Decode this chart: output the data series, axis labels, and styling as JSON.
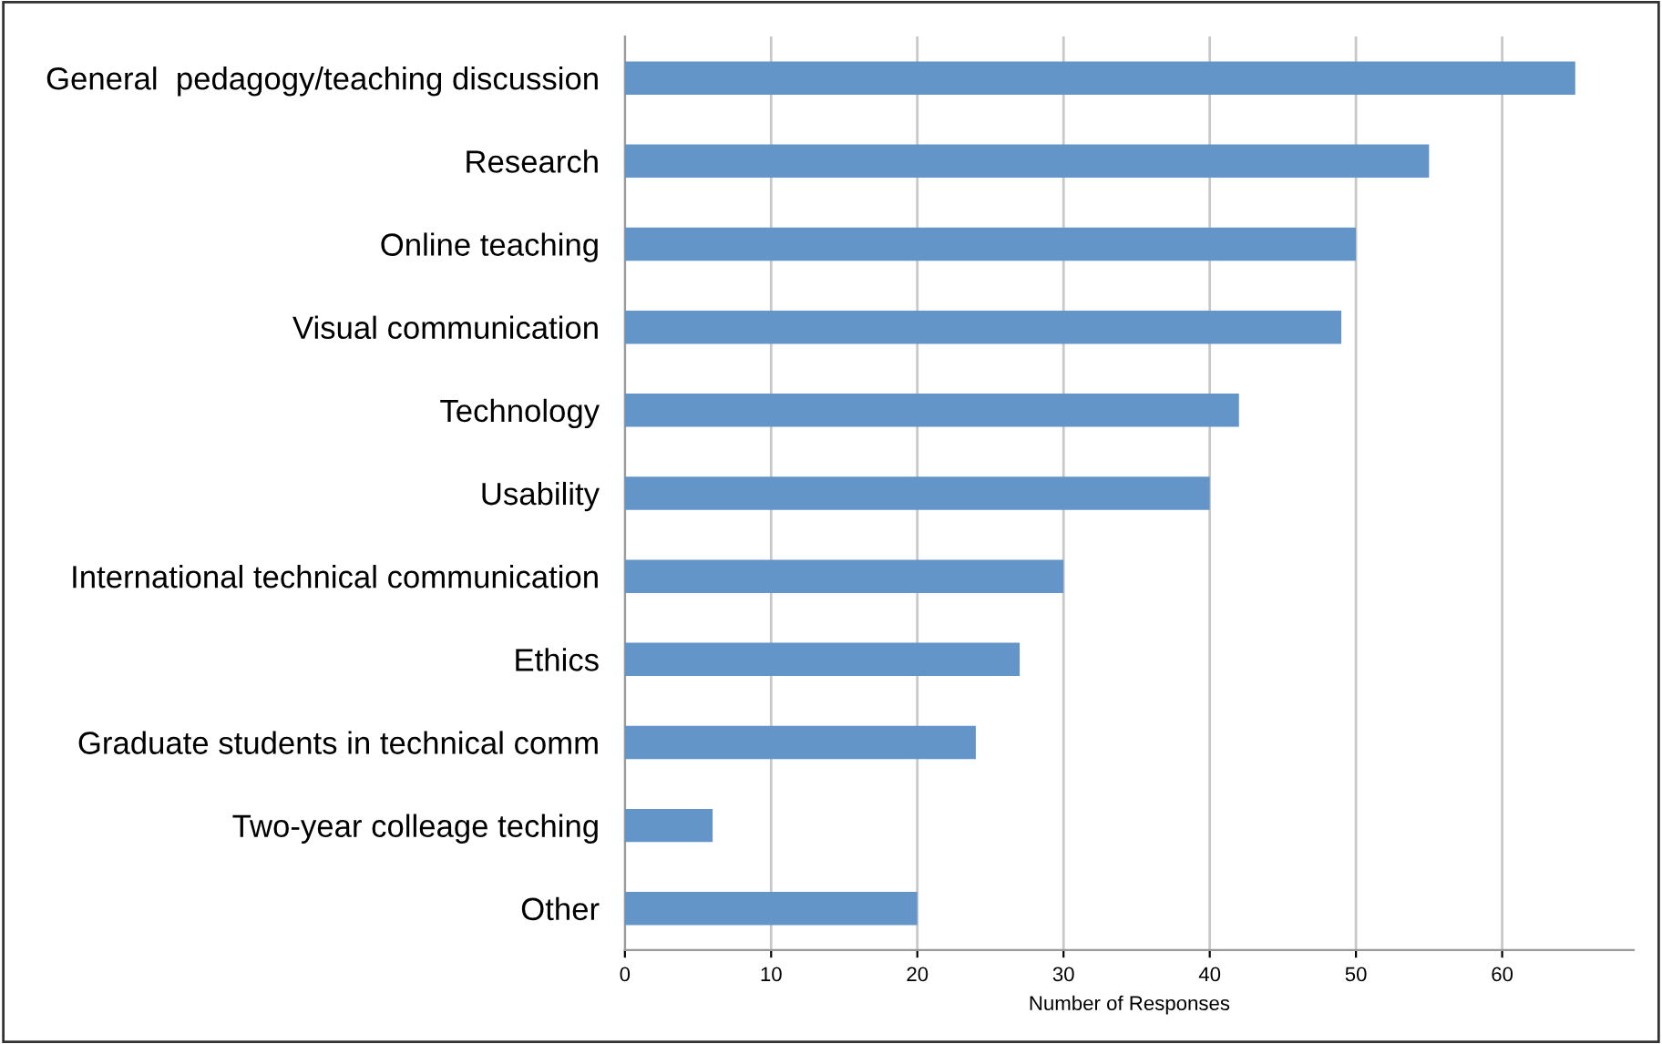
{
  "chart_data": {
    "type": "bar",
    "orientation": "horizontal",
    "xlabel": "Number of Responses",
    "categories": [
      "General  pedagogy/teaching discussion",
      "Research",
      "Online teaching",
      "Visual communication",
      "Technology",
      "Usability",
      "International technical communication",
      "Ethics",
      "Graduate students in technical comm",
      "Two-year colleage teching",
      "Other"
    ],
    "values": [
      65,
      55,
      50,
      49,
      42,
      40,
      30,
      27,
      24,
      6,
      20
    ],
    "color": "#6495c8",
    "xlim": [
      0,
      69
    ],
    "xticks": [
      0,
      10,
      20,
      30,
      40,
      50,
      60
    ],
    "grid": "x"
  }
}
